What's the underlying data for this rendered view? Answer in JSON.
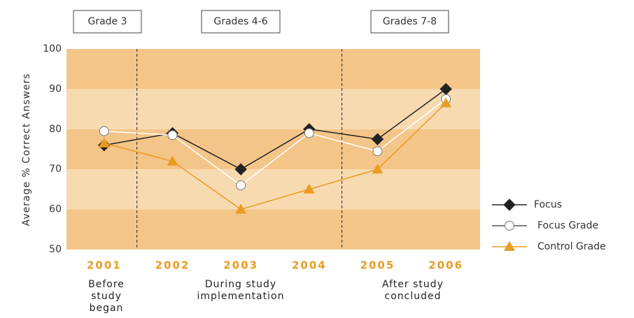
{
  "chart_data": {
    "type": "line",
    "y_label": "Average % Correct Answers",
    "categories": [
      "2001",
      "2002",
      "2003",
      "2004",
      "2005",
      "2006"
    ],
    "annotations": [
      "Grade 3",
      "Grades 4-6",
      "Grades 7-8"
    ],
    "period_labels": [
      [
        "Before",
        "study",
        "began"
      ],
      [
        "During study",
        "implementation"
      ],
      [
        "After study",
        "concluded"
      ]
    ],
    "series": [
      {
        "name": "Focus",
        "color": "#222222",
        "marker": "diamond",
        "values": [
          76,
          79,
          70,
          80,
          77.5,
          90
        ]
      },
      {
        "name": "Focus Grade",
        "color": "#ffffff",
        "marker": "circle",
        "values": [
          79.5,
          78.5,
          66,
          79,
          74.5,
          87.5
        ]
      },
      {
        "name": "Control Grade",
        "color": "#e99c22",
        "marker": "triangle",
        "values": [
          76.5,
          72,
          60,
          65,
          70,
          86.5
        ]
      }
    ],
    "ylim": [
      50,
      100
    ],
    "yticks": [
      50,
      60,
      70,
      80,
      90,
      100
    ],
    "band_colors": [
      "#f4c588",
      "#f8dab0"
    ]
  }
}
